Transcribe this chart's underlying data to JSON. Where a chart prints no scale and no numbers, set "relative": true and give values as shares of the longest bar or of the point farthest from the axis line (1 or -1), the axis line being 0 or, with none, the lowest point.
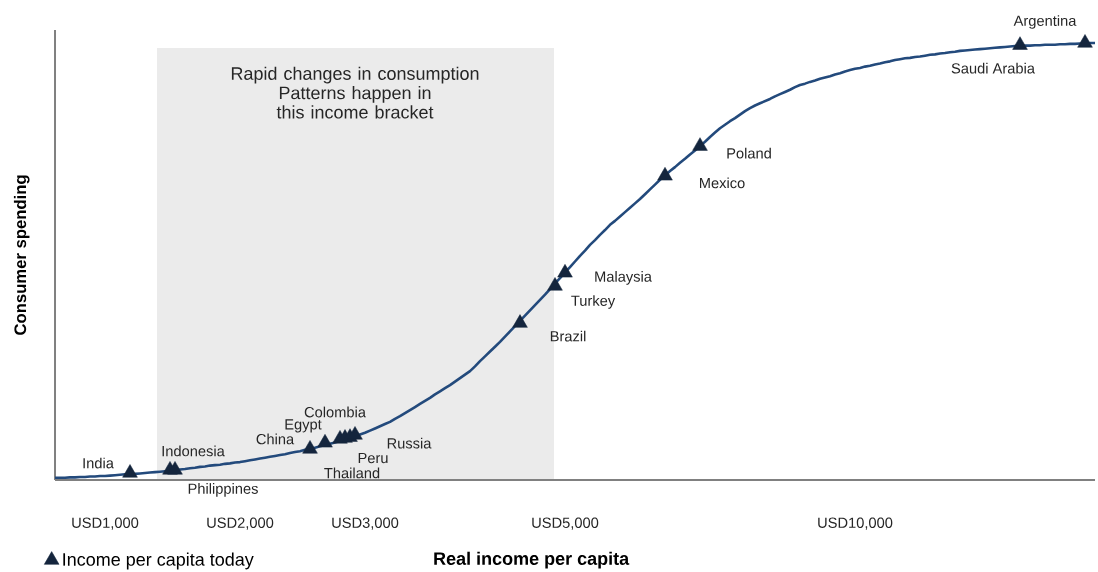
{
  "chart_data": {
    "type": "line",
    "relative": true,
    "xlabel": "Real income per capita",
    "ylabel": "Consumer spending",
    "legend": "bottom left",
    "categories": [
      null,
      null,
      null,
      null,
      null,
      null,
      null,
      null,
      null,
      null,
      "USD1,000",
      null,
      null,
      null,
      null,
      null,
      null,
      null,
      null,
      null,
      null,
      null,
      null,
      null,
      null,
      null,
      null,
      null,
      null,
      null,
      null,
      null,
      null,
      null,
      null,
      null,
      null,
      "USD2,000",
      null,
      null,
      null,
      null,
      null,
      null,
      null,
      null,
      null,
      null,
      null,
      null,
      null,
      null,
      null,
      null,
      null,
      null,
      null,
      null,
      null,
      null,
      null,
      null,
      "USD3,000",
      null,
      null,
      null,
      null,
      null,
      null,
      null,
      null,
      null,
      null,
      null,
      null,
      null,
      null,
      null,
      null,
      null,
      null,
      null,
      null,
      null,
      null,
      null,
      null,
      null,
      null,
      null,
      null,
      null,
      null,
      null,
      null,
      null,
      null,
      null,
      null,
      null,
      null,
      null,
      "USD5,000",
      null,
      null,
      null,
      null,
      null,
      null,
      null,
      null,
      null,
      null,
      null,
      null,
      null,
      null,
      null,
      null,
      null,
      null,
      null,
      null,
      null,
      null,
      null,
      null,
      null,
      null,
      null,
      null,
      null,
      null,
      null,
      null,
      null,
      null,
      null,
      null,
      null,
      null,
      null,
      null,
      null,
      null,
      null,
      null,
      null,
      null,
      null,
      null,
      null,
      null,
      null,
      null,
      null,
      null,
      null,
      null,
      null,
      "USD10,000",
      null,
      null,
      null,
      null,
      null,
      null,
      null,
      null,
      null,
      null,
      null,
      null,
      null,
      null,
      null,
      null,
      null,
      null,
      null,
      null,
      null,
      null,
      null,
      null,
      null,
      null,
      null,
      null,
      null,
      null,
      null,
      null,
      null,
      null,
      null,
      null,
      null,
      null,
      null,
      null,
      null,
      null,
      null,
      null,
      null,
      null,
      null,
      null
    ],
    "series": [
      {
        "color": "#234a7c",
        "line_style": "solid",
        "values": [
          0.005,
          0.005,
          0.005,
          0.006,
          0.006,
          0.007,
          0.007,
          0.008,
          0.008,
          0.009,
          0.009,
          0.01,
          0.011,
          0.012,
          0.013,
          0.013,
          0.014,
          0.015,
          0.016,
          0.017,
          0.018,
          0.019,
          0.02,
          0.021,
          0.022,
          0.024,
          0.025,
          0.027,
          0.028,
          0.03,
          0.031,
          0.033,
          0.034,
          0.035,
          0.037,
          0.038,
          0.04,
          0.041,
          0.043,
          0.045,
          0.047,
          0.049,
          0.051,
          0.053,
          0.055,
          0.057,
          0.059,
          0.062,
          0.064,
          0.066,
          0.069,
          0.071,
          0.074,
          0.077,
          0.08,
          0.083,
          0.086,
          0.089,
          0.093,
          0.097,
          0.1,
          0.104,
          0.108,
          0.113,
          0.118,
          0.123,
          0.128,
          0.133,
          0.14,
          0.146,
          0.153,
          0.16,
          0.167,
          0.174,
          0.181,
          0.188,
          0.196,
          0.203,
          0.21,
          0.217,
          0.225,
          0.233,
          0.241,
          0.249,
          0.26,
          0.272,
          0.283,
          0.294,
          0.305,
          0.316,
          0.328,
          0.34,
          0.352,
          0.364,
          0.376,
          0.388,
          0.4,
          0.412,
          0.424,
          0.437,
          0.45,
          0.462,
          0.475,
          0.487,
          0.5,
          0.513,
          0.525,
          0.538,
          0.549,
          0.561,
          0.572,
          0.584,
          0.593,
          0.603,
          0.613,
          0.623,
          0.633,
          0.643,
          0.654,
          0.665,
          0.676,
          0.687,
          0.697,
          0.707,
          0.716,
          0.726,
          0.735,
          0.745,
          0.754,
          0.764,
          0.774,
          0.785,
          0.795,
          0.805,
          0.813,
          0.821,
          0.828,
          0.836,
          0.844,
          0.851,
          0.857,
          0.862,
          0.867,
          0.872,
          0.878,
          0.883,
          0.888,
          0.893,
          0.899,
          0.904,
          0.907,
          0.911,
          0.914,
          0.918,
          0.921,
          0.924,
          0.928,
          0.931,
          0.935,
          0.938,
          0.941,
          0.943,
          0.946,
          0.948,
          0.951,
          0.953,
          0.956,
          0.958,
          0.961,
          0.963,
          0.965,
          0.966,
          0.968,
          0.969,
          0.971,
          0.973,
          0.974,
          0.976,
          0.977,
          0.979,
          0.98,
          0.982,
          0.983,
          0.984,
          0.985,
          0.986,
          0.987,
          0.988,
          0.989,
          0.99,
          0.991,
          0.992,
          0.993,
          0.993,
          0.994,
          0.994,
          0.995,
          0.995,
          0.996,
          0.996,
          0.996,
          0.997,
          0.997,
          0.998,
          0.998,
          0.999,
          0.999,
          1.0,
          1.0
        ]
      },
      {
        "type": "scatter",
        "name": "Income per capita today",
        "color": "#14253d",
        "marker": "triangle",
        "values": [
          null,
          null,
          null,
          null,
          null,
          null,
          null,
          null,
          null,
          null,
          null,
          null,
          null,
          null,
          null,
          0.016,
          null,
          null,
          null,
          null,
          null,
          null,
          null,
          0.023,
          0.023,
          null,
          null,
          null,
          null,
          null,
          null,
          null,
          null,
          null,
          null,
          null,
          null,
          null,
          null,
          null,
          null,
          null,
          null,
          null,
          null,
          null,
          null,
          null,
          null,
          null,
          null,
          0.071,
          null,
          null,
          0.085,
          null,
          null,
          0.094,
          0.096,
          0.098,
          0.103,
          null,
          null,
          null,
          null,
          null,
          null,
          null,
          null,
          null,
          null,
          null,
          null,
          null,
          null,
          null,
          null,
          null,
          null,
          null,
          null,
          null,
          null,
          null,
          null,
          null,
          null,
          null,
          null,
          null,
          null,
          null,
          null,
          0.359,
          null,
          null,
          null,
          null,
          null,
          null,
          0.444,
          null,
          0.474,
          null,
          null,
          null,
          null,
          null,
          null,
          null,
          null,
          null,
          null,
          null,
          null,
          null,
          null,
          null,
          null,
          null,
          null,
          null,
          0.696,
          null,
          null,
          null,
          null,
          null,
          null,
          0.764,
          null,
          null,
          null,
          null,
          null,
          null,
          null,
          null,
          null,
          null,
          null,
          null,
          null,
          null,
          null,
          null,
          null,
          null,
          null,
          null,
          null,
          null,
          null,
          null,
          null,
          null,
          null,
          null,
          null,
          null,
          null,
          null,
          null,
          null,
          null,
          null,
          null,
          null,
          null,
          null,
          null,
          null,
          null,
          null,
          null,
          null,
          null,
          null,
          null,
          null,
          null,
          null,
          null,
          null,
          null,
          null,
          null,
          null,
          null,
          null,
          null,
          null,
          null,
          0.995,
          null,
          null,
          null,
          null,
          null,
          null,
          null,
          null,
          null,
          null,
          null,
          null,
          1.0,
          null,
          null
        ]
      }
    ],
    "annotations": [
      "India",
      "Philippines",
      "Indonesia",
      "China",
      "Egypt",
      "Thailand",
      "Peru",
      "Russia",
      "Colombia",
      "Brazil",
      "Turkey",
      "Malaysia",
      "Mexico",
      "Poland",
      "Saudi Arabia",
      "Argentina",
      "Rapid changes in consumption Patterns happen in this income bracket"
    ]
  }
}
